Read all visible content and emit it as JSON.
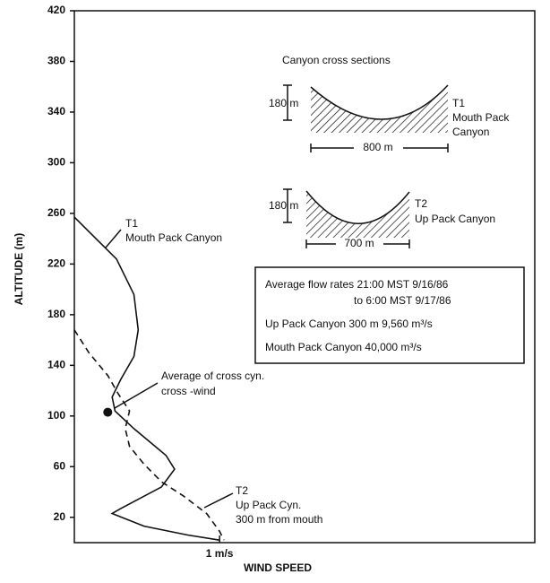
{
  "chart_data": {
    "type": "line",
    "x_label": "WIND SPEED",
    "y_label": "ALTITUDE (m)",
    "xlim": [
      0,
      3.17
    ],
    "xticks": [
      {
        "value": 1,
        "label": "1 m/s"
      }
    ],
    "ylim": [
      0,
      420
    ],
    "yticks": [
      20,
      60,
      100,
      140,
      180,
      220,
      260,
      300,
      340,
      380,
      420
    ],
    "series": [
      {
        "name": "T1",
        "label": [
          "Mouth Pack Canyon"
        ],
        "color": "#111",
        "dash": false,
        "x": [
          0,
          0.29,
          0.41,
          0.44,
          0.41,
          0.32,
          0.26,
          0.28,
          0.41,
          0.63,
          0.69,
          0.6,
          0.32,
          0.26,
          0.48,
          0.78,
          1.0
        ],
        "values": [
          257,
          224,
          196,
          168,
          147,
          129,
          115,
          104,
          90,
          69,
          58,
          44,
          27,
          23,
          13,
          6,
          2
        ]
      },
      {
        "name": "T2",
        "label": [
          "Up Pack Cyn.",
          "300 m from mouth"
        ],
        "color": "#111",
        "dash": true,
        "x": [
          0,
          0.1,
          0.23,
          0.3,
          0.38,
          0.35,
          0.38,
          0.48,
          0.6,
          0.75,
          0.91,
          1.0,
          1.03
        ],
        "values": [
          168,
          150,
          132,
          118,
          104,
          90,
          76,
          62,
          48,
          37,
          23,
          9,
          2
        ]
      }
    ],
    "average_point": {
      "label": [
        "Average of cross cyn.",
        "cross -wind"
      ],
      "x": 0.23,
      "y": 103
    }
  },
  "inset": {
    "title": "Canyon cross sections",
    "t1": {
      "depth": "180 m",
      "width": "800 m",
      "name": "T1",
      "label": [
        "Mouth Pack",
        "Canyon"
      ]
    },
    "t2": {
      "depth": "180 m",
      "width": "700 m",
      "name": "T2",
      "label": [
        "Up Pack Canyon"
      ]
    },
    "box": [
      "Average flow rates 21:00 MST 9/16/86",
      "to 6:00 MST 9/17/86",
      "Up Pack Canyon 300 m  9,560 m³/s",
      "Mouth Pack Canyon  40,000 m³/s"
    ]
  }
}
